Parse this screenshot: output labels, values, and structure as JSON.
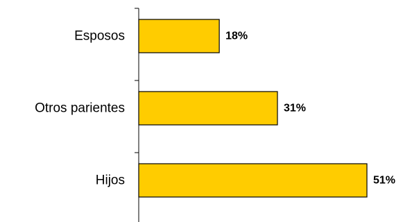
{
  "chart_data": {
    "type": "bar",
    "orientation": "horizontal",
    "categories": [
      "Esposos",
      "Otros parientes",
      "Hijos"
    ],
    "values": [
      18,
      31,
      51
    ],
    "value_labels": [
      "18%",
      "31%",
      "51%"
    ],
    "unit": "%",
    "title": "",
    "xlabel": "",
    "ylabel": "",
    "xlim": [
      0,
      51
    ],
    "grid": false,
    "legend": "none",
    "colors": {
      "bar_fill": "#FFCC00",
      "bar_stroke": "#000000",
      "axis": "#000000",
      "text": "#000000"
    }
  }
}
